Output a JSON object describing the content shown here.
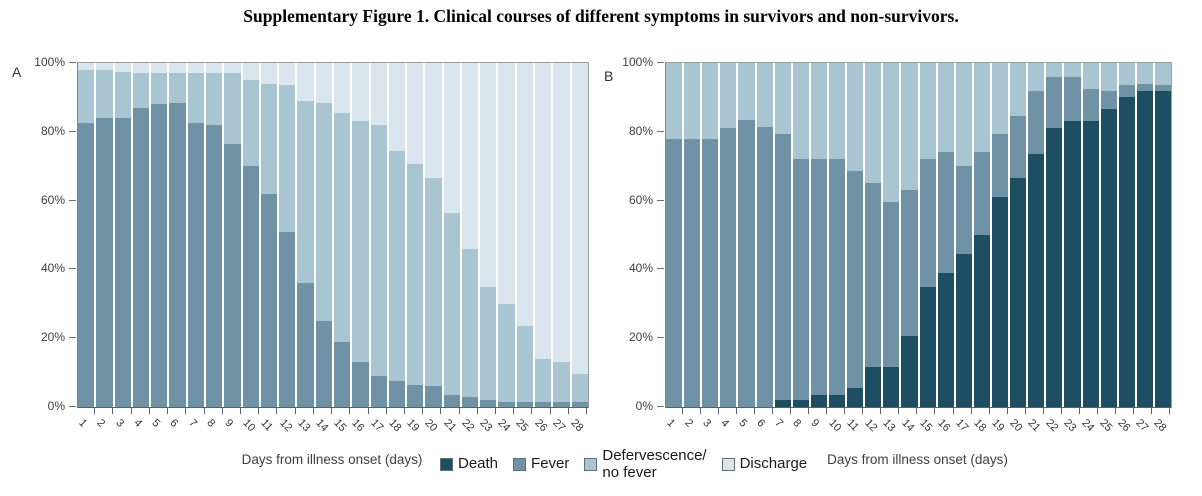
{
  "title": "Supplementary Figure 1. Clinical courses of different symptoms in survivors and non-survivors.",
  "colors": {
    "death": "#1d4e61",
    "fever": "#6f93a4",
    "defervescence": "#a9c5d2",
    "discharge": "#d9e6ed"
  },
  "legend": {
    "position": "bottom-center",
    "items": [
      {
        "key": "death",
        "label": "Death"
      },
      {
        "key": "fever",
        "label": "Fever"
      },
      {
        "key": "defervescence",
        "label": "Defervescence/\nno fever"
      },
      {
        "key": "discharge",
        "label": "Discharge"
      }
    ]
  },
  "chart_data": [
    {
      "type": "bar",
      "stacked": true,
      "panel_label": "A",
      "xlabel": "Days from illness onset (days)",
      "ylabel": "",
      "ylim": [
        0,
        100
      ],
      "yticks": [
        "0%",
        "20%",
        "40%",
        "60%",
        "80%",
        "100%"
      ],
      "grid": false,
      "categories": [
        1,
        2,
        3,
        4,
        5,
        6,
        7,
        8,
        9,
        10,
        11,
        12,
        13,
        14,
        15,
        16,
        17,
        18,
        19,
        20,
        21,
        22,
        23,
        24,
        25,
        26,
        27,
        28
      ],
      "series": [
        {
          "name": "Death",
          "key": "death",
          "values": [
            0,
            0,
            0,
            0,
            0,
            0,
            0,
            0,
            0,
            0,
            0,
            0,
            0,
            0,
            0,
            0,
            0,
            0,
            0,
            0,
            0,
            0,
            0,
            0,
            0,
            0,
            0,
            0
          ]
        },
        {
          "name": "Fever",
          "key": "fever",
          "values": [
            82.5,
            84,
            84,
            87,
            88,
            88.5,
            82.5,
            82,
            76.5,
            70,
            62,
            51,
            36,
            25,
            19,
            13,
            9,
            7.5,
            6.5,
            6,
            3.5,
            3,
            2,
            1.5,
            1.5,
            1.5,
            1.5,
            1.5
          ]
        },
        {
          "name": "Defervescence/no fever",
          "key": "defervescence",
          "values": [
            15.5,
            14,
            13.5,
            10,
            9,
            8.5,
            14.5,
            15,
            20.5,
            25,
            32,
            42.5,
            53,
            63.5,
            66.5,
            70,
            73,
            67,
            64,
            60.5,
            53,
            43,
            33,
            28.5,
            22,
            12.5,
            11.5,
            8
          ]
        },
        {
          "name": "Discharge",
          "key": "discharge",
          "values": [
            2,
            2,
            2.5,
            3,
            3,
            3,
            3,
            3,
            3,
            5,
            6,
            6.5,
            11,
            11.5,
            14.5,
            17,
            18,
            25.5,
            29.5,
            33.5,
            43.5,
            54,
            65,
            70,
            76.5,
            86,
            87,
            90.5
          ]
        }
      ]
    },
    {
      "type": "bar",
      "stacked": true,
      "panel_label": "B",
      "xlabel": "Days from illness onset (days)",
      "ylabel": "",
      "ylim": [
        0,
        100
      ],
      "yticks": [
        "0%",
        "20%",
        "40%",
        "60%",
        "80%",
        "100%"
      ],
      "grid": false,
      "categories": [
        1,
        2,
        3,
        4,
        5,
        6,
        7,
        8,
        9,
        10,
        11,
        12,
        13,
        14,
        15,
        16,
        17,
        18,
        19,
        20,
        21,
        22,
        23,
        24,
        25,
        26,
        27,
        28
      ],
      "series": [
        {
          "name": "Death",
          "key": "death",
          "values": [
            0,
            0,
            0,
            0,
            0,
            0,
            2,
            2,
            3.5,
            3.5,
            5.5,
            11.5,
            11.5,
            20.5,
            35,
            39,
            44.5,
            50,
            61,
            66.5,
            73.5,
            81,
            83,
            83,
            86.5,
            90,
            92,
            92
          ]
        },
        {
          "name": "Fever",
          "key": "fever",
          "values": [
            78,
            78,
            78,
            81,
            83.5,
            81.5,
            77.5,
            70,
            68.5,
            68.5,
            63,
            53.5,
            48,
            42.5,
            37,
            35,
            25.5,
            24,
            18.5,
            18,
            18.5,
            15,
            13,
            9.5,
            5.5,
            3.5,
            2,
            1.5
          ]
        },
        {
          "name": "Defervescence/no fever",
          "key": "defervescence",
          "values": [
            22,
            22,
            22,
            19,
            16.5,
            18.5,
            20.5,
            28,
            28,
            28,
            31.5,
            35,
            40.5,
            37,
            28,
            26,
            30,
            26,
            20.5,
            15.5,
            8,
            4,
            4,
            7.5,
            8,
            6.5,
            6,
            6.5
          ]
        },
        {
          "name": "Discharge",
          "key": "discharge",
          "values": [
            0,
            0,
            0,
            0,
            0,
            0,
            0,
            0,
            0,
            0,
            0,
            0,
            0,
            0,
            0,
            0,
            0,
            0,
            0,
            0,
            0,
            0,
            0,
            0,
            0,
            0,
            0,
            0
          ]
        }
      ]
    }
  ]
}
